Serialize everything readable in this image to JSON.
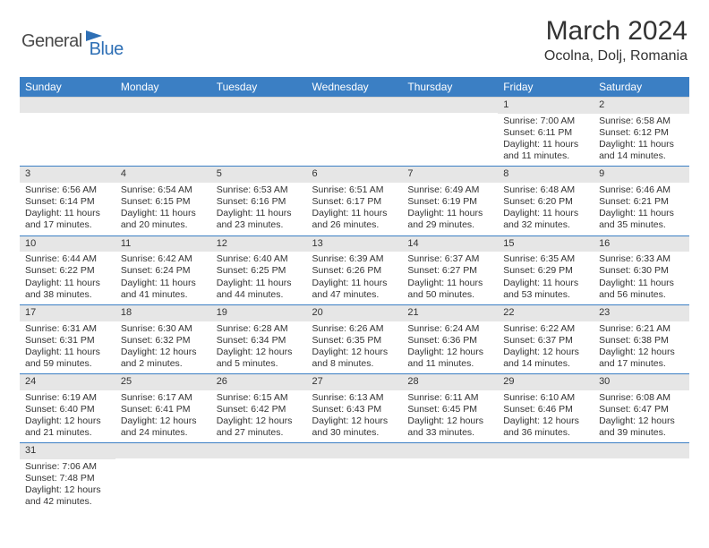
{
  "logo": {
    "part1": "General",
    "part2": "Blue"
  },
  "title": "March 2024",
  "location": "Ocolna, Dolj, Romania",
  "colors": {
    "header_bg": "#3b7fc4",
    "header_text": "#ffffff",
    "daynum_bg": "#e6e6e6",
    "row_border": "#3b7fc4",
    "logo_blue": "#2e6fb5",
    "logo_gray": "#4a4a4a"
  },
  "weekdays": [
    "Sunday",
    "Monday",
    "Tuesday",
    "Wednesday",
    "Thursday",
    "Friday",
    "Saturday"
  ],
  "weeks": [
    [
      null,
      null,
      null,
      null,
      null,
      {
        "n": "1",
        "sr": "7:00 AM",
        "ss": "6:11 PM",
        "dl": "11 hours and 11 minutes."
      },
      {
        "n": "2",
        "sr": "6:58 AM",
        "ss": "6:12 PM",
        "dl": "11 hours and 14 minutes."
      }
    ],
    [
      {
        "n": "3",
        "sr": "6:56 AM",
        "ss": "6:14 PM",
        "dl": "11 hours and 17 minutes."
      },
      {
        "n": "4",
        "sr": "6:54 AM",
        "ss": "6:15 PM",
        "dl": "11 hours and 20 minutes."
      },
      {
        "n": "5",
        "sr": "6:53 AM",
        "ss": "6:16 PM",
        "dl": "11 hours and 23 minutes."
      },
      {
        "n": "6",
        "sr": "6:51 AM",
        "ss": "6:17 PM",
        "dl": "11 hours and 26 minutes."
      },
      {
        "n": "7",
        "sr": "6:49 AM",
        "ss": "6:19 PM",
        "dl": "11 hours and 29 minutes."
      },
      {
        "n": "8",
        "sr": "6:48 AM",
        "ss": "6:20 PM",
        "dl": "11 hours and 32 minutes."
      },
      {
        "n": "9",
        "sr": "6:46 AM",
        "ss": "6:21 PM",
        "dl": "11 hours and 35 minutes."
      }
    ],
    [
      {
        "n": "10",
        "sr": "6:44 AM",
        "ss": "6:22 PM",
        "dl": "11 hours and 38 minutes."
      },
      {
        "n": "11",
        "sr": "6:42 AM",
        "ss": "6:24 PM",
        "dl": "11 hours and 41 minutes."
      },
      {
        "n": "12",
        "sr": "6:40 AM",
        "ss": "6:25 PM",
        "dl": "11 hours and 44 minutes."
      },
      {
        "n": "13",
        "sr": "6:39 AM",
        "ss": "6:26 PM",
        "dl": "11 hours and 47 minutes."
      },
      {
        "n": "14",
        "sr": "6:37 AM",
        "ss": "6:27 PM",
        "dl": "11 hours and 50 minutes."
      },
      {
        "n": "15",
        "sr": "6:35 AM",
        "ss": "6:29 PM",
        "dl": "11 hours and 53 minutes."
      },
      {
        "n": "16",
        "sr": "6:33 AM",
        "ss": "6:30 PM",
        "dl": "11 hours and 56 minutes."
      }
    ],
    [
      {
        "n": "17",
        "sr": "6:31 AM",
        "ss": "6:31 PM",
        "dl": "11 hours and 59 minutes."
      },
      {
        "n": "18",
        "sr": "6:30 AM",
        "ss": "6:32 PM",
        "dl": "12 hours and 2 minutes."
      },
      {
        "n": "19",
        "sr": "6:28 AM",
        "ss": "6:34 PM",
        "dl": "12 hours and 5 minutes."
      },
      {
        "n": "20",
        "sr": "6:26 AM",
        "ss": "6:35 PM",
        "dl": "12 hours and 8 minutes."
      },
      {
        "n": "21",
        "sr": "6:24 AM",
        "ss": "6:36 PM",
        "dl": "12 hours and 11 minutes."
      },
      {
        "n": "22",
        "sr": "6:22 AM",
        "ss": "6:37 PM",
        "dl": "12 hours and 14 minutes."
      },
      {
        "n": "23",
        "sr": "6:21 AM",
        "ss": "6:38 PM",
        "dl": "12 hours and 17 minutes."
      }
    ],
    [
      {
        "n": "24",
        "sr": "6:19 AM",
        "ss": "6:40 PM",
        "dl": "12 hours and 21 minutes."
      },
      {
        "n": "25",
        "sr": "6:17 AM",
        "ss": "6:41 PM",
        "dl": "12 hours and 24 minutes."
      },
      {
        "n": "26",
        "sr": "6:15 AM",
        "ss": "6:42 PM",
        "dl": "12 hours and 27 minutes."
      },
      {
        "n": "27",
        "sr": "6:13 AM",
        "ss": "6:43 PM",
        "dl": "12 hours and 30 minutes."
      },
      {
        "n": "28",
        "sr": "6:11 AM",
        "ss": "6:45 PM",
        "dl": "12 hours and 33 minutes."
      },
      {
        "n": "29",
        "sr": "6:10 AM",
        "ss": "6:46 PM",
        "dl": "12 hours and 36 minutes."
      },
      {
        "n": "30",
        "sr": "6:08 AM",
        "ss": "6:47 PM",
        "dl": "12 hours and 39 minutes."
      }
    ],
    [
      {
        "n": "31",
        "sr": "7:06 AM",
        "ss": "7:48 PM",
        "dl": "12 hours and 42 minutes."
      },
      null,
      null,
      null,
      null,
      null,
      null
    ]
  ],
  "labels": {
    "sunrise": "Sunrise:",
    "sunset": "Sunset:",
    "daylight": "Daylight:"
  }
}
